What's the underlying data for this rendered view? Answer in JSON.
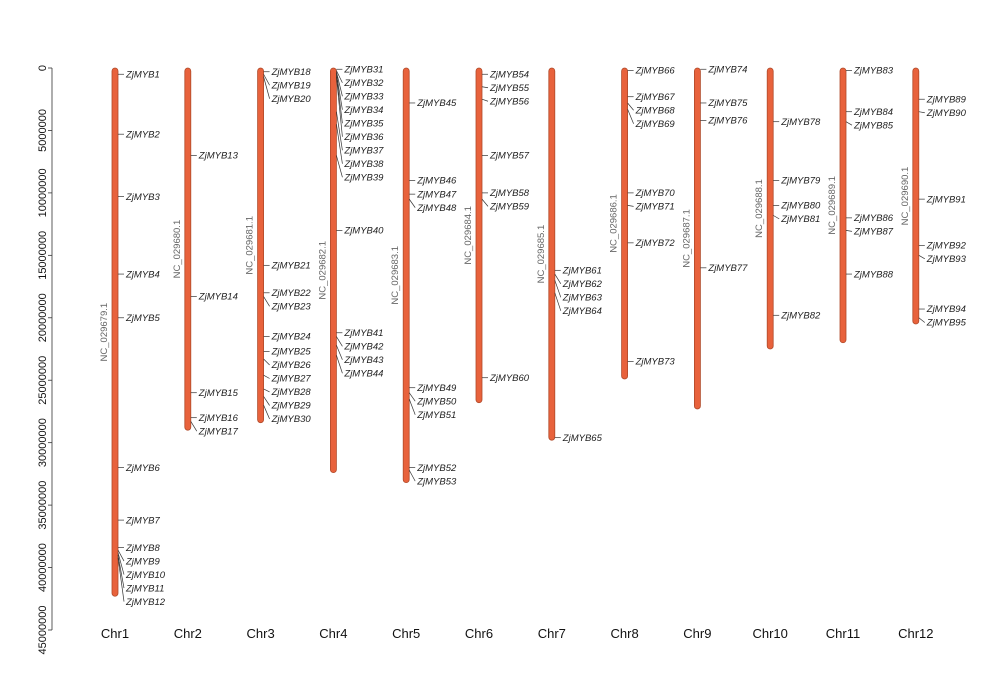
{
  "chart_data": {
    "type": "chromosome-map",
    "axis": {
      "ticks": [
        0,
        5000000,
        10000000,
        15000000,
        20000000,
        25000000,
        30000000,
        35000000,
        40000000,
        45000000
      ],
      "tick_labels": [
        "0",
        "5000000",
        "10000000",
        "15000000",
        "20000000",
        "25000000",
        "30000000",
        "35000000",
        "40000000",
        "45000000"
      ],
      "range": [
        0,
        45000000
      ]
    },
    "bar_color": "#e8623c",
    "chromosomes": [
      {
        "name": "Chr1",
        "accession": "NC_029679.1",
        "length": 42300000,
        "genes": [
          {
            "name": "ZjMYB1",
            "pos": 500000
          },
          {
            "name": "ZjMYB2",
            "pos": 5300000
          },
          {
            "name": "ZjMYB3",
            "pos": 10300000
          },
          {
            "name": "ZjMYB4",
            "pos": 16500000
          },
          {
            "name": "ZjMYB5",
            "pos": 20000000
          },
          {
            "name": "ZjMYB6",
            "pos": 32000000
          },
          {
            "name": "ZjMYB7",
            "pos": 36200000
          },
          {
            "name": "ZjMYB8",
            "pos": 38400000
          },
          {
            "name": "ZjMYB9",
            "pos": 38600000
          },
          {
            "name": "ZjMYB10",
            "pos": 38800000
          },
          {
            "name": "ZjMYB11",
            "pos": 39000000
          },
          {
            "name": "ZjMYB12",
            "pos": 39200000
          }
        ]
      },
      {
        "name": "Chr2",
        "accession": "NC_029680.1",
        "length": 29000000,
        "genes": [
          {
            "name": "ZjMYB13",
            "pos": 7000000
          },
          {
            "name": "ZjMYB14",
            "pos": 18300000
          },
          {
            "name": "ZjMYB15",
            "pos": 26000000
          },
          {
            "name": "ZjMYB16",
            "pos": 28000000
          },
          {
            "name": "ZjMYB17",
            "pos": 28300000
          }
        ]
      },
      {
        "name": "Chr3",
        "accession": "NC_029681.1",
        "length": 28400000,
        "genes": [
          {
            "name": "ZjMYB18",
            "pos": 300000
          },
          {
            "name": "ZjMYB19",
            "pos": 500000
          },
          {
            "name": "ZjMYB20",
            "pos": 700000
          },
          {
            "name": "ZjMYB21",
            "pos": 15800000
          },
          {
            "name": "ZjMYB22",
            "pos": 18000000
          },
          {
            "name": "ZjMYB23",
            "pos": 18300000
          },
          {
            "name": "ZjMYB24",
            "pos": 21500000
          },
          {
            "name": "ZjMYB25",
            "pos": 22700000
          },
          {
            "name": "ZjMYB26",
            "pos": 23300000
          },
          {
            "name": "ZjMYB27",
            "pos": 24600000
          },
          {
            "name": "ZjMYB28",
            "pos": 25700000
          },
          {
            "name": "ZjMYB29",
            "pos": 26300000
          },
          {
            "name": "ZjMYB30",
            "pos": 27000000
          }
        ]
      },
      {
        "name": "Chr4",
        "accession": "NC_029682.1",
        "length": 32400000,
        "genes": [
          {
            "name": "ZjMYB31",
            "pos": 100000
          },
          {
            "name": "ZjMYB32",
            "pos": 200000
          },
          {
            "name": "ZjMYB33",
            "pos": 300000
          },
          {
            "name": "ZjMYB34",
            "pos": 400000
          },
          {
            "name": "ZjMYB35",
            "pos": 500000
          },
          {
            "name": "ZjMYB36",
            "pos": 700000
          },
          {
            "name": "ZjMYB37",
            "pos": 3500000
          },
          {
            "name": "ZjMYB38",
            "pos": 4500000
          },
          {
            "name": "ZjMYB39",
            "pos": 7000000
          },
          {
            "name": "ZjMYB40",
            "pos": 13000000
          },
          {
            "name": "ZjMYB41",
            "pos": 21200000
          },
          {
            "name": "ZjMYB42",
            "pos": 21500000
          },
          {
            "name": "ZjMYB43",
            "pos": 22200000
          },
          {
            "name": "ZjMYB44",
            "pos": 23000000
          }
        ]
      },
      {
        "name": "Chr5",
        "accession": "NC_029683.1",
        "length": 33200000,
        "genes": [
          {
            "name": "ZjMYB45",
            "pos": 2800000
          },
          {
            "name": "ZjMYB46",
            "pos": 9000000
          },
          {
            "name": "ZjMYB47",
            "pos": 10100000
          },
          {
            "name": "ZjMYB48",
            "pos": 10500000
          },
          {
            "name": "ZjMYB49",
            "pos": 25600000
          },
          {
            "name": "ZjMYB50",
            "pos": 26000000
          },
          {
            "name": "ZjMYB51",
            "pos": 26500000
          },
          {
            "name": "ZjMYB52",
            "pos": 32000000
          },
          {
            "name": "ZjMYB53",
            "pos": 32200000
          }
        ]
      },
      {
        "name": "Chr6",
        "accession": "NC_029684.1",
        "length": 26800000,
        "genes": [
          {
            "name": "ZjMYB54",
            "pos": 500000
          },
          {
            "name": "ZjMYB55",
            "pos": 1500000
          },
          {
            "name": "ZjMYB56",
            "pos": 2500000
          },
          {
            "name": "ZjMYB57",
            "pos": 7000000
          },
          {
            "name": "ZjMYB58",
            "pos": 10000000
          },
          {
            "name": "ZjMYB59",
            "pos": 10500000
          },
          {
            "name": "ZjMYB60",
            "pos": 24800000
          }
        ]
      },
      {
        "name": "Chr7",
        "accession": "NC_029685.1",
        "length": 29800000,
        "genes": [
          {
            "name": "ZjMYB61",
            "pos": 16200000
          },
          {
            "name": "ZjMYB62",
            "pos": 16500000
          },
          {
            "name": "ZjMYB63",
            "pos": 17000000
          },
          {
            "name": "ZjMYB64",
            "pos": 18000000
          },
          {
            "name": "ZjMYB65",
            "pos": 29600000
          }
        ]
      },
      {
        "name": "Chr8",
        "accession": "NC_029686.1",
        "length": 24900000,
        "genes": [
          {
            "name": "ZjMYB66",
            "pos": 200000
          },
          {
            "name": "ZjMYB67",
            "pos": 2300000
          },
          {
            "name": "ZjMYB68",
            "pos": 2800000
          },
          {
            "name": "ZjMYB69",
            "pos": 3300000
          },
          {
            "name": "ZjMYB70",
            "pos": 10000000
          },
          {
            "name": "ZjMYB71",
            "pos": 11000000
          },
          {
            "name": "ZjMYB72",
            "pos": 14000000
          },
          {
            "name": "ZjMYB73",
            "pos": 23500000
          }
        ]
      },
      {
        "name": "Chr9",
        "accession": "NC_029687.1",
        "length": 27300000,
        "genes": [
          {
            "name": "ZjMYB74",
            "pos": 100000
          },
          {
            "name": "ZjMYB75",
            "pos": 2800000
          },
          {
            "name": "ZjMYB76",
            "pos": 4200000
          },
          {
            "name": "ZjMYB77",
            "pos": 16000000
          }
        ]
      },
      {
        "name": "Chr10",
        "accession": "NC_029688.1",
        "length": 22500000,
        "genes": [
          {
            "name": "ZjMYB78",
            "pos": 4300000
          },
          {
            "name": "ZjMYB79",
            "pos": 9000000
          },
          {
            "name": "ZjMYB80",
            "pos": 11000000
          },
          {
            "name": "ZjMYB81",
            "pos": 11800000
          },
          {
            "name": "ZjMYB82",
            "pos": 19800000
          }
        ]
      },
      {
        "name": "Chr11",
        "accession": "NC_029689.1",
        "length": 22000000,
        "genes": [
          {
            "name": "ZjMYB83",
            "pos": 200000
          },
          {
            "name": "ZjMYB84",
            "pos": 3500000
          },
          {
            "name": "ZjMYB85",
            "pos": 4300000
          },
          {
            "name": "ZjMYB86",
            "pos": 12000000
          },
          {
            "name": "ZjMYB87",
            "pos": 13000000
          },
          {
            "name": "ZjMYB88",
            "pos": 16500000
          }
        ]
      },
      {
        "name": "Chr12",
        "accession": "NC_029690.1",
        "length": 20500000,
        "genes": [
          {
            "name": "ZjMYB89",
            "pos": 2500000
          },
          {
            "name": "ZjMYB90",
            "pos": 3500000
          },
          {
            "name": "ZjMYB91",
            "pos": 10500000
          },
          {
            "name": "ZjMYB92",
            "pos": 14200000
          },
          {
            "name": "ZjMYB93",
            "pos": 15000000
          },
          {
            "name": "ZjMYB94",
            "pos": 19300000
          },
          {
            "name": "ZjMYB95",
            "pos": 20000000
          }
        ]
      }
    ]
  }
}
